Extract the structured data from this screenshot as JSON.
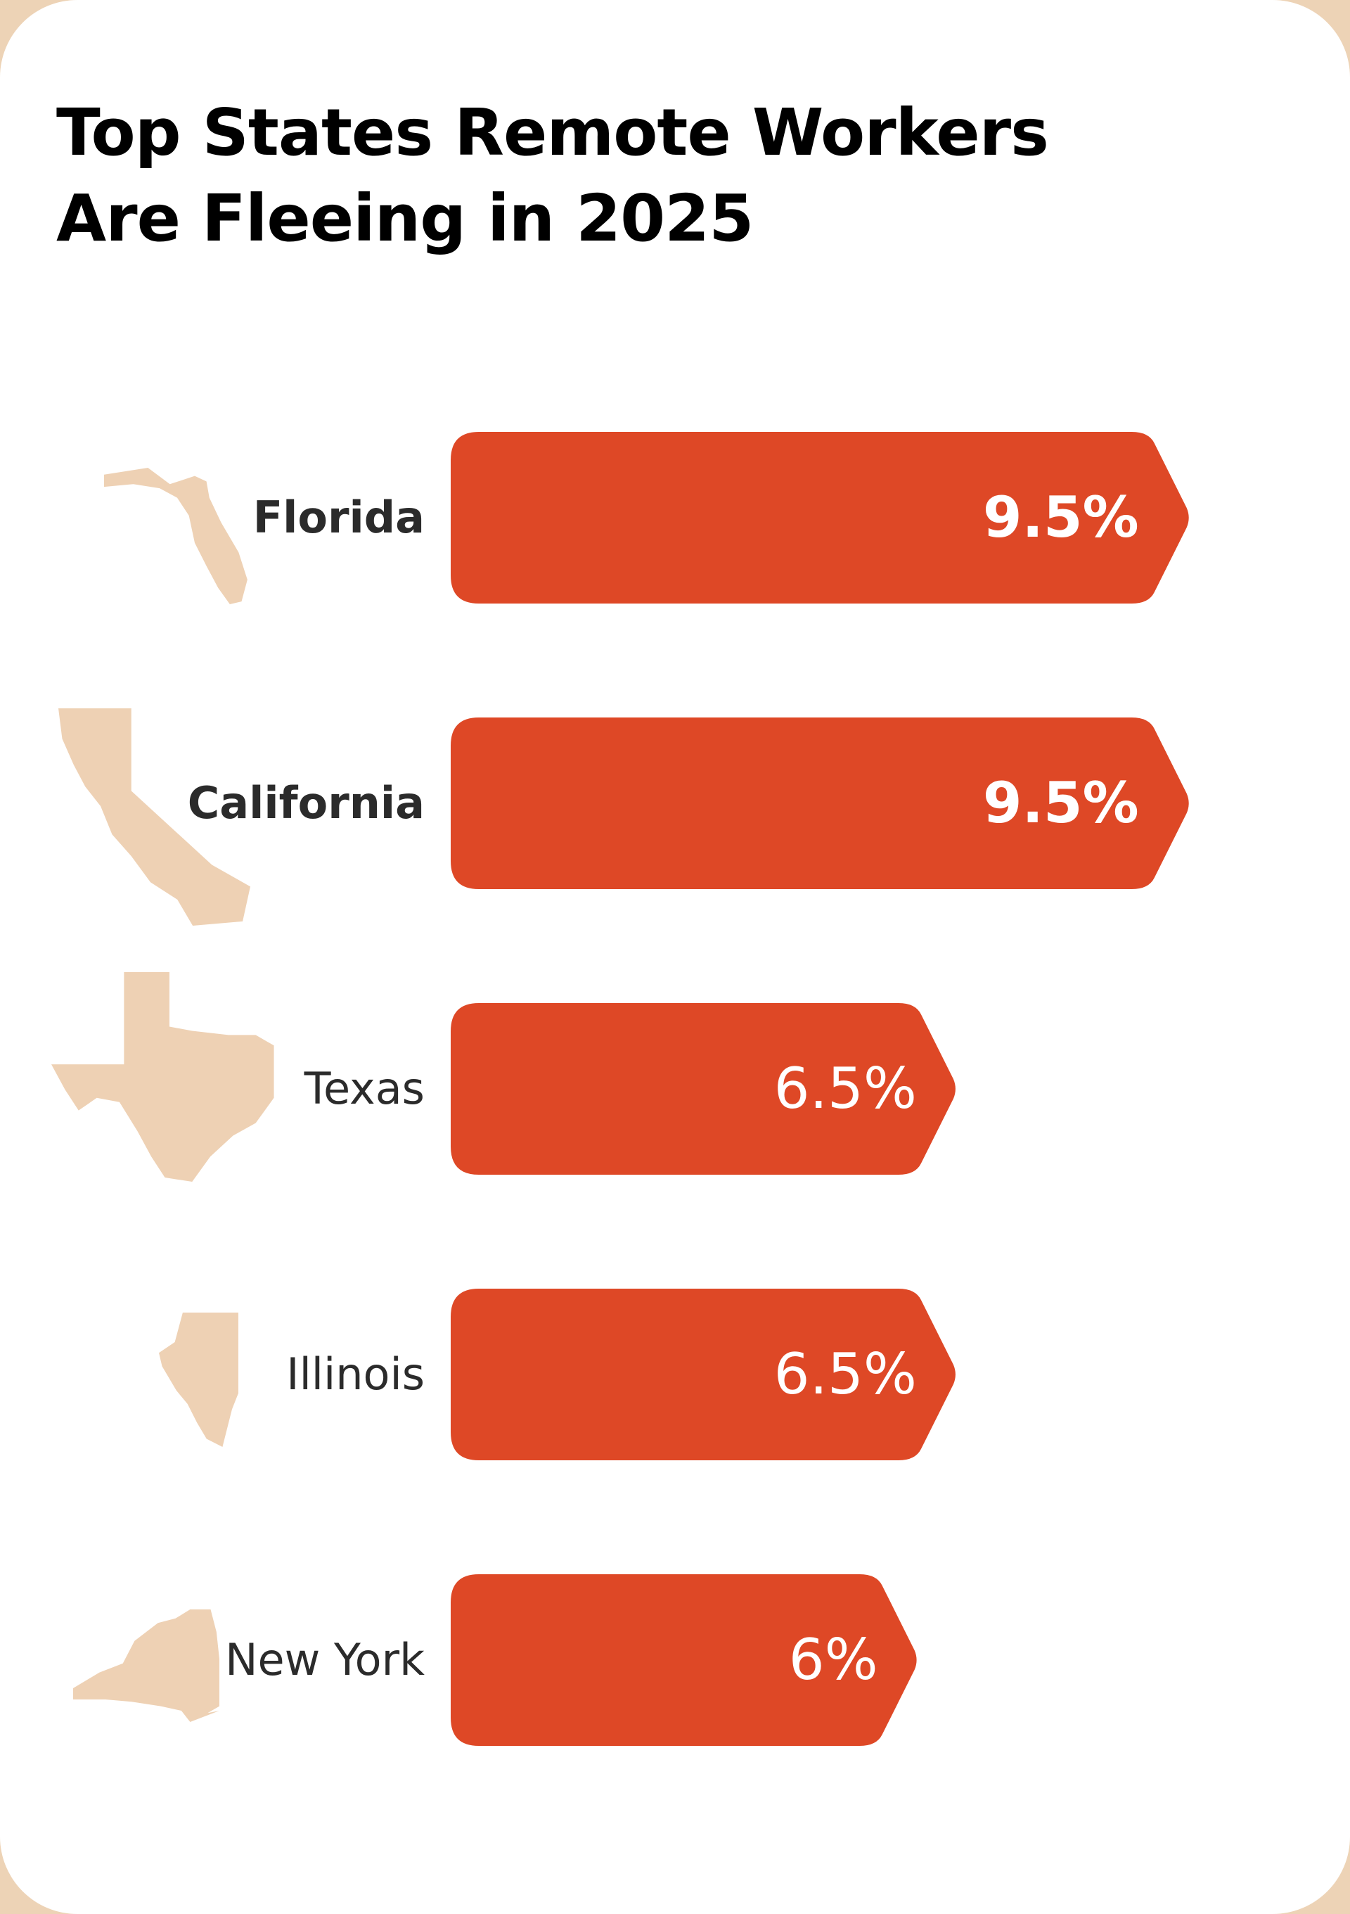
{
  "title": [
    "Top States Remote Workers",
    "Are Fleeing in 2025"
  ],
  "colors": {
    "bar": "#DE4826",
    "state": "#EED1B4",
    "background": "#EDD3B6",
    "card": "#FFFFFF"
  },
  "chart_data": {
    "type": "bar",
    "orientation": "horizontal",
    "title": "Top States Remote Workers Are Fleeing in 2025",
    "categories": [
      "Florida",
      "California",
      "Texas",
      "Illinois",
      "New York"
    ],
    "values": [
      9.5,
      9.5,
      6.5,
      6.5,
      6
    ],
    "value_labels": [
      "9.5%",
      "9.5%",
      "6.5%",
      "6.5%",
      "6%"
    ],
    "emphasis": [
      true,
      true,
      false,
      false,
      false
    ],
    "unit": "%",
    "grid": false
  }
}
